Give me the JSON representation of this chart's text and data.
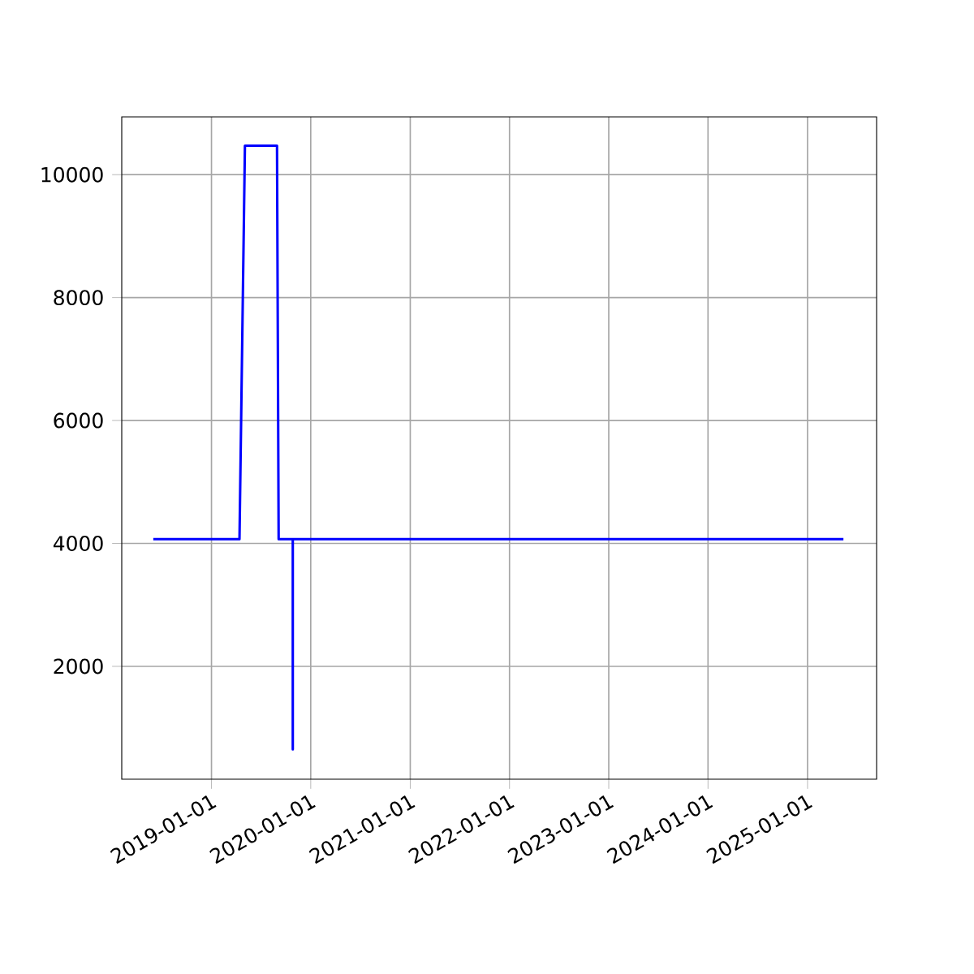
{
  "chart_data": {
    "type": "line",
    "x": [
      "2018-06-01",
      "2019-04-14",
      "2019-05-04",
      "2019-08-30",
      "2019-09-05",
      "2019-10-27",
      "2019-10-27",
      "2019-10-27",
      "2025-05-13"
    ],
    "series": [
      {
        "color": "#0000ff",
        "values": [
          4070,
          4070,
          10470,
          10470,
          4070,
          4070,
          650,
          4070,
          4070
        ]
      }
    ],
    "xlim": [
      "2018-02-05",
      "2025-09-12"
    ],
    "xticks": [
      "2019-01-01",
      "2020-01-01",
      "2021-01-01",
      "2022-01-01",
      "2023-01-01",
      "2024-01-01",
      "2025-01-01"
    ],
    "ylim": [
      164,
      10940
    ],
    "yticks": [
      2000,
      4000,
      6000,
      8000,
      10000
    ],
    "grid": true,
    "marker": "none",
    "line_style": "solid"
  }
}
